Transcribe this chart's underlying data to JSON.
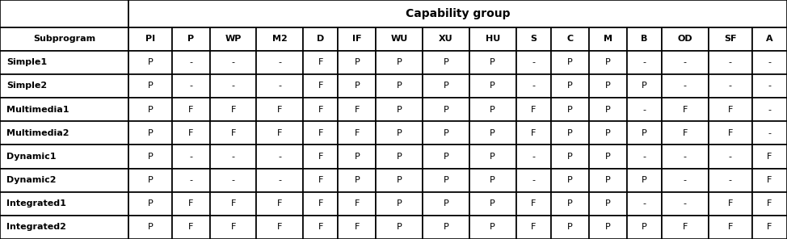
{
  "title": "Capability group",
  "col_headers": [
    "Subprogram",
    "PI",
    "P",
    "WP",
    "M2",
    "D",
    "IF",
    "WU",
    "XU",
    "HU",
    "S",
    "C",
    "M",
    "B",
    "OD",
    "SF",
    "A"
  ],
  "rows": [
    [
      "Simple1",
      "P",
      "-",
      "-",
      "-",
      "F",
      "P",
      "P",
      "P",
      "P",
      "-",
      "P",
      "P",
      "-",
      "-",
      "-",
      "-"
    ],
    [
      "Simple2",
      "P",
      "-",
      "-",
      "-",
      "F",
      "P",
      "P",
      "P",
      "P",
      "-",
      "P",
      "P",
      "P",
      "-",
      "-",
      "-"
    ],
    [
      "Multimedia1",
      "P",
      "F",
      "F",
      "F",
      "F",
      "F",
      "P",
      "P",
      "P",
      "F",
      "P",
      "P",
      "-",
      "F",
      "F",
      "-"
    ],
    [
      "Multimedia2",
      "P",
      "F",
      "F",
      "F",
      "F",
      "F",
      "P",
      "P",
      "P",
      "F",
      "P",
      "P",
      "P",
      "F",
      "F",
      "-"
    ],
    [
      "Dynamic1",
      "P",
      "-",
      "-",
      "-",
      "F",
      "P",
      "P",
      "P",
      "P",
      "-",
      "P",
      "P",
      "-",
      "-",
      "-",
      "F"
    ],
    [
      "Dynamic2",
      "P",
      "-",
      "-",
      "-",
      "F",
      "P",
      "P",
      "P",
      "P",
      "-",
      "P",
      "P",
      "P",
      "-",
      "-",
      "F"
    ],
    [
      "Integrated1",
      "P",
      "F",
      "F",
      "F",
      "F",
      "F",
      "P",
      "P",
      "P",
      "F",
      "P",
      "P",
      "-",
      "-",
      "F",
      "F"
    ],
    [
      "Integrated2",
      "P",
      "F",
      "F",
      "F",
      "F",
      "F",
      "P",
      "P",
      "P",
      "F",
      "P",
      "P",
      "P",
      "F",
      "F",
      "F"
    ]
  ],
  "col_widths_raw": [
    2.2,
    0.75,
    0.65,
    0.8,
    0.8,
    0.6,
    0.65,
    0.8,
    0.8,
    0.8,
    0.6,
    0.65,
    0.65,
    0.6,
    0.8,
    0.75,
    0.6
  ],
  "background_color": "#ffffff",
  "line_color": "#000000",
  "text_color": "#000000",
  "title_fontsize": 10,
  "header_fontsize": 8,
  "cell_fontsize": 8,
  "lw": 1.2
}
